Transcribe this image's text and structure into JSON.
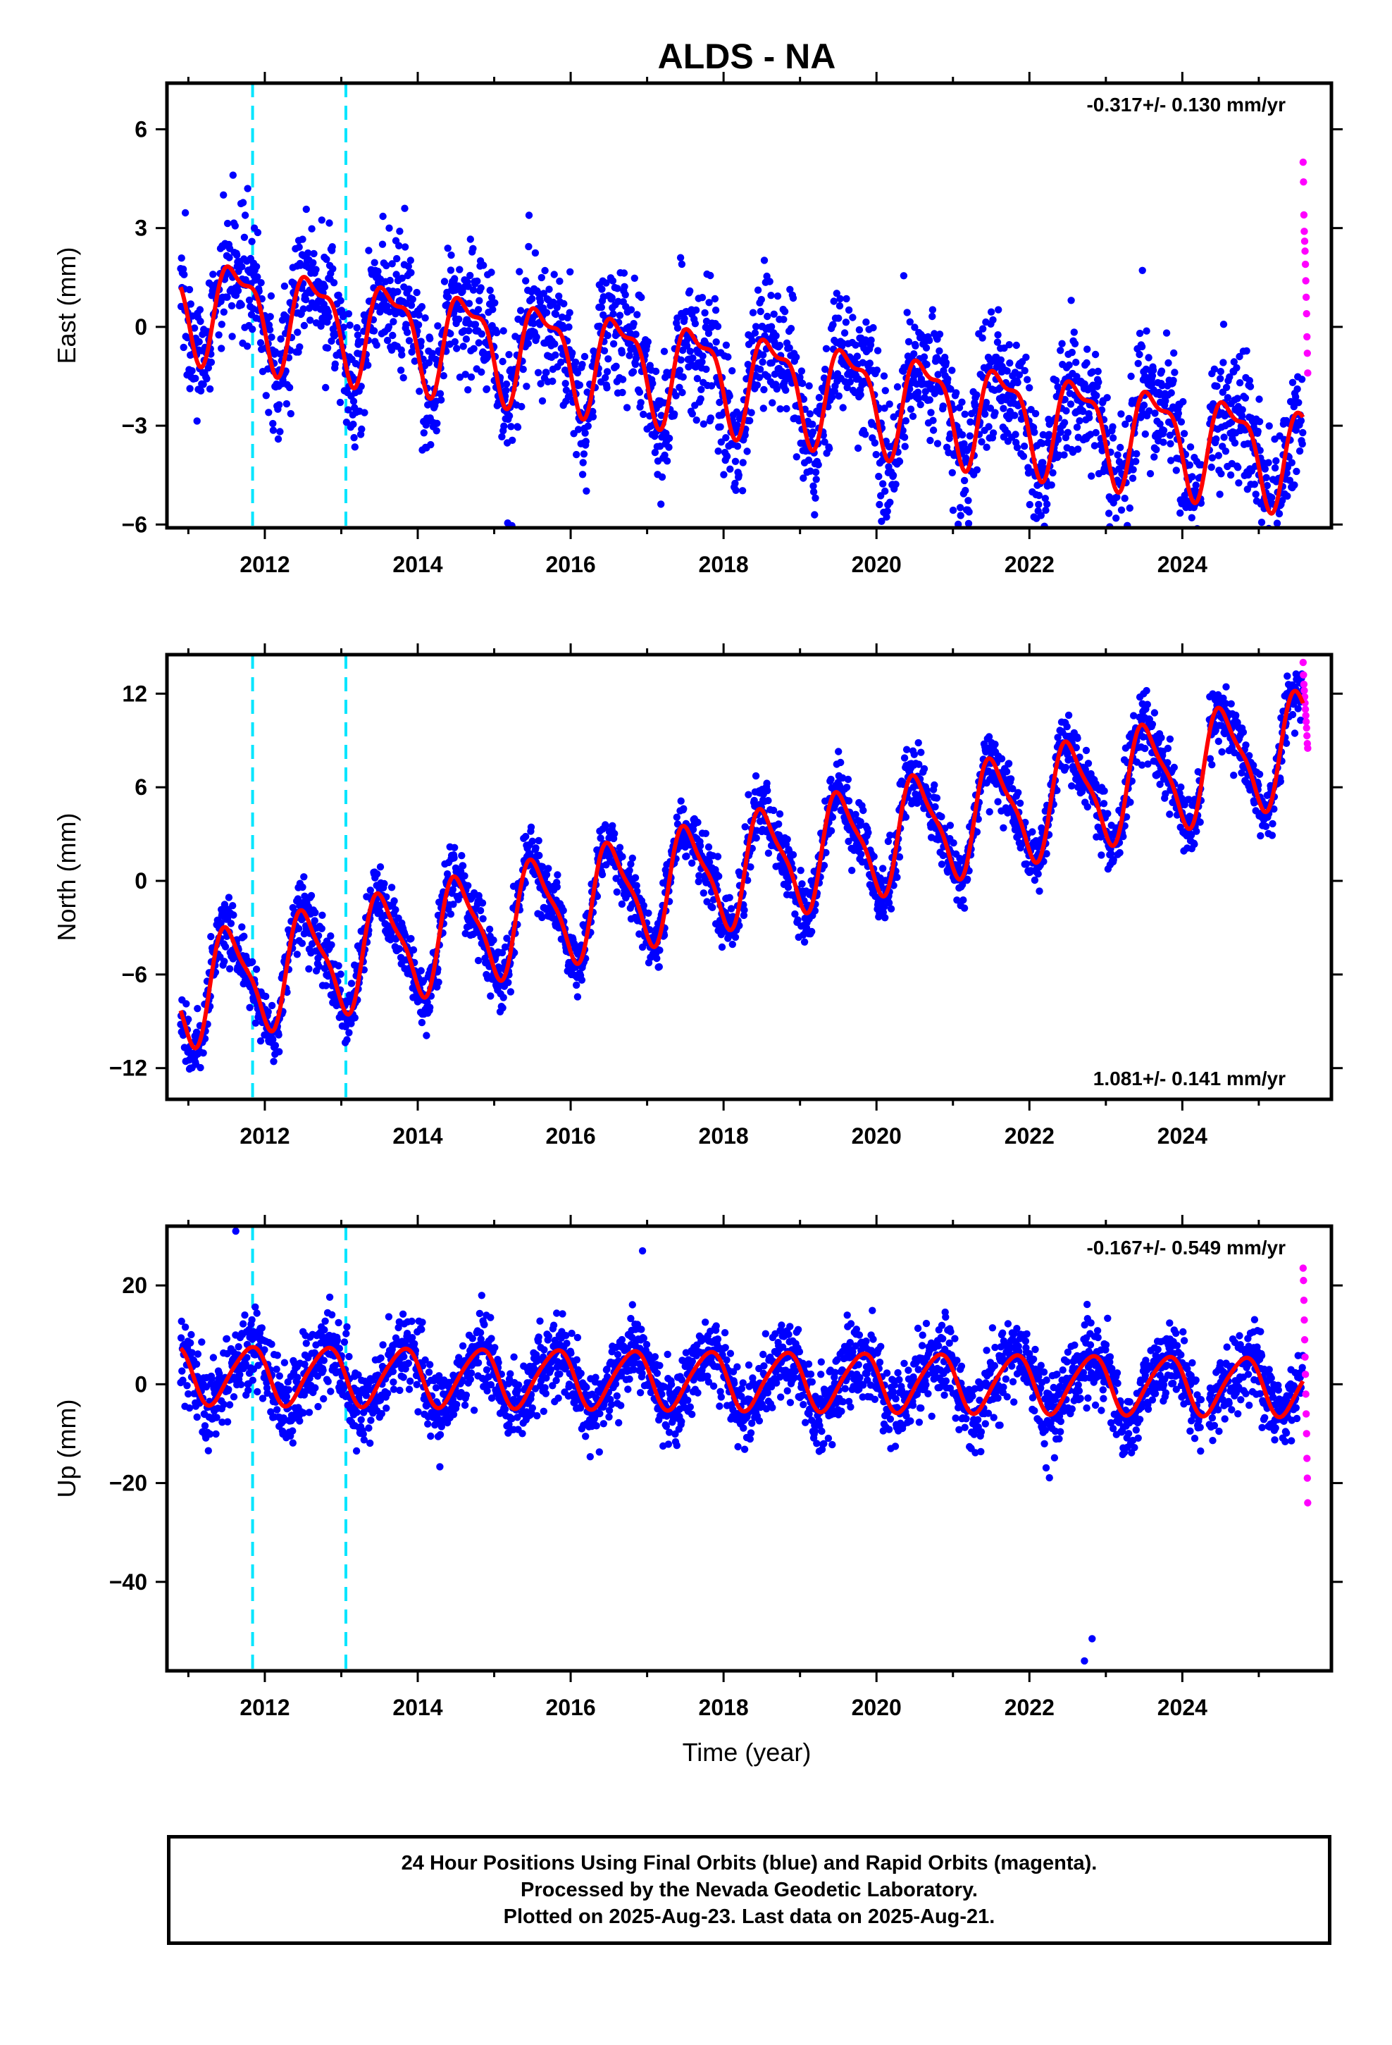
{
  "title": "ALDS - NA",
  "xlabel": "Time (year)",
  "footer": {
    "line1": "24 Hour Positions Using Final Orbits (blue) and Rapid Orbits (magenta).",
    "line2": "Processed by the Nevada Geodetic Laboratory.",
    "line3": "Plotted on 2025-Aug-23. Last data on 2025-Aug-21."
  },
  "colors": {
    "final_orbits": "#0000ff",
    "rapid_orbits": "#ff00ff",
    "model_fit": "#ff0000",
    "event_lines": "#00e5ff"
  },
  "chart_data": [
    {
      "type": "scatter",
      "component": "east",
      "ylabel": "East (mm)",
      "rate_text": "-0.317+/- 0.130 mm/yr",
      "rate_position": "top-right",
      "xlim": [
        2010.72,
        2025.95
      ],
      "ylim": [
        -6.1,
        7.4
      ],
      "xticks": [
        2012,
        2014,
        2016,
        2018,
        2020,
        2022,
        2024
      ],
      "xtick_labels": [
        "2012",
        "2014",
        "2016",
        "2018",
        "2020",
        "2022",
        "2024"
      ],
      "yticks": [
        -6,
        -3,
        0,
        3,
        6
      ],
      "ytick_labels": [
        "−6",
        "−3",
        "0",
        "3",
        "6"
      ],
      "event_lines": [
        2011.84,
        2013.06
      ],
      "model": {
        "trend_mm_per_yr": -0.317,
        "start_year": 2011.0,
        "start_value": 0.75,
        "annual_amplitude": 1.4,
        "annual_peak_year_fraction": 0.64,
        "semiannual_amplitude": 0.55,
        "semiannual_phase": 0.9,
        "noise_sd": 1.0
      },
      "final_orbit_range": [
        2010.9,
        2025.58
      ],
      "rapid_orbit_range": [
        2025.58,
        2025.64
      ],
      "rapid_orbit_values": [
        5.0,
        4.4,
        3.4,
        2.9,
        2.6,
        2.3,
        1.9,
        1.4,
        0.9,
        0.4,
        -0.3,
        -0.8,
        -1.4
      ]
    },
    {
      "type": "scatter",
      "component": "north",
      "ylabel": "North (mm)",
      "rate_text": "1.081+/- 0.141 mm/yr",
      "rate_position": "bottom-right",
      "xlim": [
        2010.72,
        2025.95
      ],
      "ylim": [
        -14,
        14.5
      ],
      "xticks": [
        2012,
        2014,
        2016,
        2018,
        2020,
        2022,
        2024
      ],
      "xtick_labels": [
        "2012",
        "2014",
        "2016",
        "2018",
        "2020",
        "2022",
        "2024"
      ],
      "yticks": [
        -12,
        -6,
        0,
        6,
        12
      ],
      "ytick_labels": [
        "−12",
        "−6",
        "0",
        "6",
        "12"
      ],
      "event_lines": [
        2011.84,
        2013.06
      ],
      "model": {
        "trend_mm_per_yr": 1.081,
        "start_year": 2011.0,
        "start_value": -7.0,
        "annual_amplitude": 3.3,
        "annual_peak_year_fraction": 0.54,
        "semiannual_amplitude": 0.9,
        "semiannual_phase": 1.3,
        "noise_sd": 1.0
      },
      "final_orbit_range": [
        2010.9,
        2025.58
      ],
      "rapid_orbit_range": [
        2025.58,
        2025.64
      ],
      "rapid_orbit_values": [
        14.0,
        13.2,
        12.6,
        12.2,
        11.8,
        11.4,
        11.0,
        10.6,
        10.2,
        9.8,
        9.3,
        8.8,
        8.5
      ]
    },
    {
      "type": "scatter",
      "component": "up",
      "ylabel": "Up (mm)",
      "rate_text": "-0.167+/- 0.549 mm/yr",
      "rate_position": "top-right",
      "xlim": [
        2010.72,
        2025.95
      ],
      "ylim": [
        -58,
        32
      ],
      "xticks": [
        2012,
        2014,
        2016,
        2018,
        2020,
        2022,
        2024
      ],
      "xtick_labels": [
        "2012",
        "2014",
        "2016",
        "2018",
        "2020",
        "2022",
        "2024"
      ],
      "yticks": [
        -40,
        -20,
        0,
        20
      ],
      "ytick_labels": [
        "−40",
        "−20",
        "0",
        "20"
      ],
      "event_lines": [
        2011.84,
        2013.06
      ],
      "model": {
        "trend_mm_per_yr": -0.167,
        "start_year": 2011.0,
        "start_value": 2.0,
        "annual_amplitude": 5.8,
        "annual_peak_year_fraction": 0.8,
        "semiannual_amplitude": 0.8,
        "semiannual_phase": 0.5,
        "noise_sd": 4.0
      },
      "final_orbit_range": [
        2010.9,
        2025.58
      ],
      "rapid_orbit_range": [
        2025.58,
        2025.64
      ],
      "rapid_orbit_values": [
        23.5,
        21.0,
        17.0,
        13.0,
        9.0,
        5.5,
        2.0,
        -2.0,
        -6.0,
        -10.0,
        -15.0,
        -19.0,
        -24.0
      ],
      "outliers": [
        {
          "x": 2022.72,
          "y": -56.0
        },
        {
          "x": 2022.82,
          "y": -51.5
        },
        {
          "x": 2011.62,
          "y": 31.0
        },
        {
          "x": 2016.94,
          "y": 27.0
        }
      ]
    }
  ]
}
